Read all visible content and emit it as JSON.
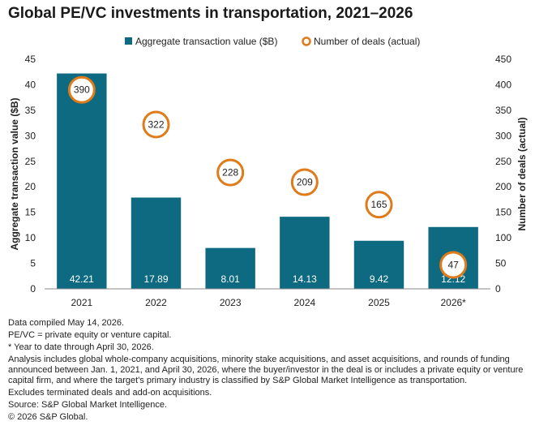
{
  "title": "Global PE/VC investments in transportation, 2021–2026",
  "chart_data": {
    "type": "bar",
    "categories": [
      "2021",
      "2022",
      "2023",
      "2024",
      "2025",
      "2026*"
    ],
    "series": [
      {
        "name": "Aggregate transaction value ($B)",
        "type": "bar",
        "axis": "left",
        "values": [
          42.21,
          17.89,
          8.01,
          14.13,
          9.42,
          12.12
        ],
        "labels": [
          "42.21",
          "17.89",
          "8.01",
          "14.13",
          "9.42",
          "12.12"
        ]
      },
      {
        "name": "Number of deals (actual)",
        "type": "scatter",
        "axis": "right",
        "values": [
          390,
          322,
          228,
          209,
          165,
          47
        ],
        "labels": [
          "390",
          "322",
          "228",
          "209",
          "165",
          "47"
        ]
      }
    ],
    "ylabel": "Aggregate transaction value ($B)",
    "y2label": "Number of deals (actual)",
    "ylim": [
      0,
      45
    ],
    "y2lim": [
      0,
      450
    ],
    "yticks": [
      "0",
      "5",
      "10",
      "15",
      "20",
      "25",
      "30",
      "35",
      "40",
      "45"
    ],
    "y2ticks": [
      "0",
      "50",
      "100",
      "150",
      "200",
      "250",
      "300",
      "350",
      "400",
      "450"
    ],
    "legend_position": "top",
    "grid": false,
    "colors": {
      "bar": "#0e6a80",
      "marker_stroke": "#e07b1a",
      "marker_fill": "#ffffff",
      "bar_label": "#ffffff"
    }
  },
  "notes": [
    "Data compiled May 14, 2026.",
    "PE/VC = private equity or venture capital.",
    "* Year to date through April 30, 2026.",
    "Analysis includes global whole-company acquisitions, minority stake acquisitions, and asset acquisitions, and rounds of funding announced between Jan. 1, 2021, and April 30, 2026, where the buyer/investor in the deal is or includes a private equity or venture capital firm, and where the target's primary industry is classified by S&P Global Market Intelligence as transportation.",
    "Excludes terminated deals and add-on acquisitions.",
    "Source: S&P Global Market Intelligence.",
    "© 2026 S&P Global."
  ]
}
